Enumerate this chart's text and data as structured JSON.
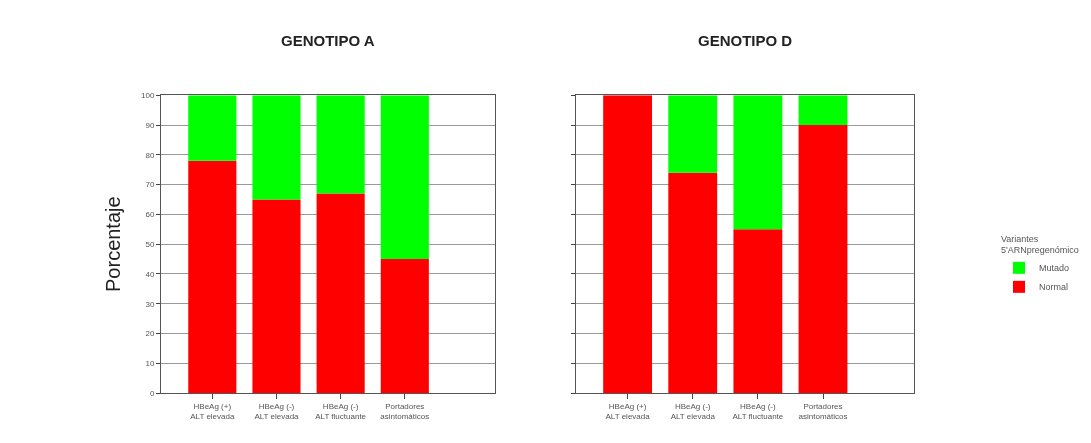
{
  "chart_data": [
    {
      "type": "bar",
      "title": "GENOTIPO A",
      "ylabel": "Porcentaje",
      "stacked": true,
      "legend": "right",
      "categories": [
        "HBeAg (+)\nALT elevada",
        "HBeAg (-)\nALT elevada",
        "HBeAg (-)\nALT fluctuante",
        "Portadores\nasintomáticos"
      ],
      "series": [
        {
          "name": "Normal",
          "color": "#ff0000",
          "values": [
            78,
            65,
            67,
            45
          ]
        },
        {
          "name": "Mutado",
          "color": "#00ff00",
          "values": [
            22,
            35,
            33,
            55
          ]
        }
      ],
      "ylim": [
        0,
        100
      ],
      "yticks": [
        0,
        10,
        20,
        30,
        40,
        50,
        60,
        70,
        80,
        90,
        100
      ],
      "grid": "y"
    },
    {
      "type": "bar",
      "title": "GENOTIPO D",
      "stacked": true,
      "legend": "right",
      "legend_title": "Variantes\n5'ARNpregenómico",
      "categories": [
        "HBeAg (+)\nALT elevada",
        "HBeAg (-)\nALT elevada",
        "HBeAg (-)\nALT fluctuante",
        "Portadores\nasintomáticos"
      ],
      "series": [
        {
          "name": "Normal",
          "color": "#ff0000",
          "values": [
            100,
            74,
            55,
            90
          ]
        },
        {
          "name": "Mutado",
          "color": "#00ff00",
          "values": [
            0,
            26,
            45,
            10
          ]
        }
      ],
      "ylim": [
        0,
        100
      ],
      "yticks": [
        0,
        10,
        20,
        30,
        40,
        50,
        60,
        70,
        80,
        90,
        100
      ],
      "grid": "y",
      "tick_labels": "x"
    }
  ]
}
